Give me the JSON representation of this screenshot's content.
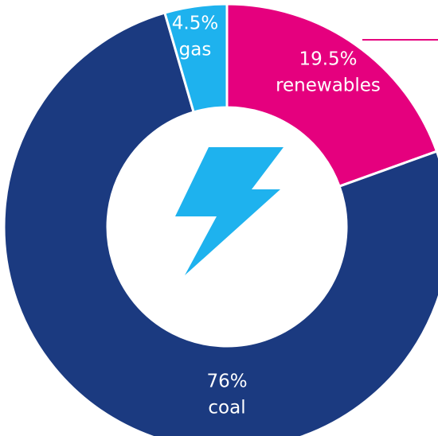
{
  "chart_data": {
    "type": "donut",
    "categories": [
      "renewables",
      "coal",
      "gas"
    ],
    "values": [
      19.5,
      76,
      4.5
    ],
    "value_labels": [
      "19.5%",
      "76%",
      "4.5%"
    ],
    "colors": [
      "#e5007e",
      "#1b3a80",
      "#1eb2ee"
    ]
  }
}
